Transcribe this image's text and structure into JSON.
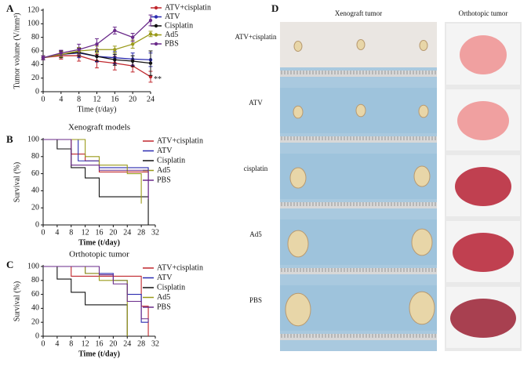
{
  "chart_data": [
    {
      "type": "line",
      "panel_label": "A",
      "xlabel": "Time (t/day)",
      "ylabel": "Tumor volume (V/mm³)",
      "x": [
        0,
        4,
        8,
        12,
        16,
        20,
        24
      ],
      "xlim": [
        0,
        24
      ],
      "xticks": [
        0,
        4,
        8,
        12,
        16,
        20,
        24
      ],
      "ylim": [
        0,
        120
      ],
      "yticks": [
        0,
        20,
        40,
        60,
        80,
        100,
        120
      ],
      "annotation": "**",
      "series": [
        {
          "name": "ATV+cisplatin",
          "color": "#c0272d",
          "values": [
            50,
            53,
            53,
            45,
            42,
            38,
            22
          ],
          "errors": [
            3,
            5,
            8,
            10,
            10,
            9,
            8
          ]
        },
        {
          "name": "ATV",
          "color": "#2b2bb0",
          "values": [
            50,
            55,
            57,
            52,
            50,
            48,
            47
          ],
          "errors": [
            3,
            5,
            7,
            8,
            9,
            9,
            10
          ]
        },
        {
          "name": "Cisplatin",
          "color": "#111111",
          "values": [
            50,
            55,
            58,
            52,
            47,
            45,
            42
          ],
          "errors": [
            3,
            5,
            6,
            7,
            8,
            8,
            18
          ]
        },
        {
          "name": "Ad5",
          "color": "#9a9a1a",
          "values": [
            50,
            55,
            60,
            62,
            62,
            70,
            85
          ],
          "errors": [
            3,
            4,
            5,
            5,
            5,
            6,
            4
          ]
        },
        {
          "name": "PBS",
          "color": "#6a2a8a",
          "values": [
            50,
            57,
            62,
            70,
            90,
            80,
            105
          ],
          "errors": [
            3,
            4,
            8,
            8,
            5,
            6,
            8
          ]
        }
      ]
    },
    {
      "type": "step",
      "panel_label": "B",
      "title": "Xenograft models",
      "xlabel": "Time (t/day)",
      "ylabel": "Survival (%)",
      "xlim": [
        0,
        32
      ],
      "xticks": [
        0,
        4,
        8,
        12,
        16,
        20,
        24,
        28,
        32
      ],
      "ylim": [
        0,
        100
      ],
      "yticks": [
        0,
        20,
        40,
        60,
        80,
        100
      ],
      "series": [
        {
          "name": "ATV+cisplatin",
          "color": "#c0272d",
          "x": [
            0,
            8,
            12,
            16,
            30
          ],
          "values": [
            100,
            83,
            75,
            62,
            30
          ]
        },
        {
          "name": "ATV",
          "color": "#2b2bb0",
          "x": [
            0,
            10,
            16,
            30
          ],
          "values": [
            100,
            75,
            67,
            33
          ]
        },
        {
          "name": "Cisplatin",
          "color": "#111111",
          "x": [
            0,
            4,
            8,
            12,
            16,
            30
          ],
          "values": [
            100,
            89,
            67,
            55,
            33,
            0
          ]
        },
        {
          "name": "Ad5",
          "color": "#9a9a1a",
          "x": [
            0,
            12,
            16,
            24,
            28
          ],
          "values": [
            100,
            80,
            70,
            60,
            25
          ]
        },
        {
          "name": "PBS",
          "color": "#6a2a8a",
          "x": [
            0,
            8,
            16,
            30
          ],
          "values": [
            100,
            70,
            64,
            30
          ]
        }
      ]
    },
    {
      "type": "step",
      "panel_label": "C",
      "title": "Orthotopic tumor",
      "xlabel": "Time (t/day)",
      "ylabel": "Survival (%)",
      "xlim": [
        0,
        32
      ],
      "xticks": [
        0,
        4,
        8,
        12,
        16,
        20,
        24,
        28,
        32
      ],
      "ylim": [
        0,
        100
      ],
      "yticks": [
        0,
        20,
        40,
        60,
        80,
        100
      ],
      "series": [
        {
          "name": "ATV+cisplatin",
          "color": "#c0272d",
          "x": [
            0,
            8,
            28,
            30
          ],
          "values": [
            100,
            86,
            43,
            0
          ]
        },
        {
          "name": "ATV",
          "color": "#2b2bb0",
          "x": [
            0,
            12,
            20,
            24,
            28,
            30
          ],
          "values": [
            100,
            90,
            80,
            60,
            20,
            20
          ]
        },
        {
          "name": "Cisplatin",
          "color": "#111111",
          "x": [
            0,
            4,
            8,
            12,
            24
          ],
          "values": [
            100,
            82,
            63,
            45,
            0
          ]
        },
        {
          "name": "Ad5",
          "color": "#9a9a1a",
          "x": [
            0,
            12,
            16,
            24
          ],
          "values": [
            100,
            90,
            80,
            0
          ]
        },
        {
          "name": "PBS",
          "color": "#6a2a8a",
          "x": [
            0,
            16,
            20,
            24,
            28,
            30
          ],
          "values": [
            100,
            88,
            75,
            50,
            25,
            20
          ]
        }
      ]
    }
  ],
  "photo_panel": {
    "panel_label": "D",
    "columns": [
      "Xenograft tumor",
      "Orthotopic tumor"
    ],
    "rows": [
      "ATV+cisplatin",
      "ATV",
      "cisplatin",
      "Ad5",
      "PBS"
    ]
  }
}
